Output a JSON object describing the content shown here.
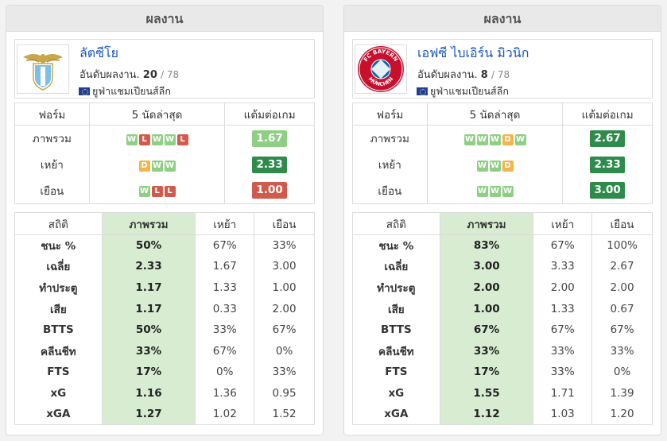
{
  "colors": {
    "win": "#8fcf84",
    "draw": "#f2b54a",
    "loss": "#d25a4c",
    "ppg_high": "#2e8b4c",
    "ppg_mid": "#8fcf84",
    "ppg_low": "#d25a4c",
    "team_link": "#1a56b8"
  },
  "teams": [
    {
      "header": "ผลงาน",
      "name": "ลัตซีโย",
      "logo_icon": "lazio-eagle-crest-icon",
      "rank_label": "อันดับผลงาน.",
      "rank": "20",
      "rank_total": "/ 78",
      "competition": "ยูฟ่าแชมเปียนส์ลีก",
      "form_headers": [
        "ฟอร์ม",
        "5 นัดล่าสุด",
        "แต้มต่อเกม"
      ],
      "form_rows": [
        {
          "label": "ภาพรวม",
          "results": [
            "W",
            "L",
            "W",
            "W",
            "L"
          ],
          "ppg": "1.67",
          "ppg_color": "#8fcf84"
        },
        {
          "label": "เหย้า",
          "results": [
            "D",
            "W",
            "W"
          ],
          "ppg": "2.33",
          "ppg_color": "#2e8b4c"
        },
        {
          "label": "เยือน",
          "results": [
            "W",
            "L",
            "L"
          ],
          "ppg": "1.00",
          "ppg_color": "#d25a4c"
        }
      ],
      "stats_headers": [
        "สถิติ",
        "ภาพรวม",
        "เหย้า",
        "เยือน"
      ],
      "stats_rows": [
        {
          "label": "ชนะ %",
          "overall": "50%",
          "home": "67%",
          "away": "33%"
        },
        {
          "label": "เฉลี่ย",
          "overall": "2.33",
          "home": "1.67",
          "away": "3.00"
        },
        {
          "label": "ทำประตู",
          "overall": "1.17",
          "home": "1.33",
          "away": "1.00"
        },
        {
          "label": "เสีย",
          "overall": "1.17",
          "home": "0.33",
          "away": "2.00"
        },
        {
          "label": "BTTS",
          "overall": "50%",
          "home": "33%",
          "away": "67%"
        },
        {
          "label": "คลีนชีท",
          "overall": "33%",
          "home": "67%",
          "away": "0%"
        },
        {
          "label": "FTS",
          "overall": "17%",
          "home": "0%",
          "away": "33%"
        },
        {
          "label": "xG",
          "overall": "1.16",
          "home": "1.36",
          "away": "0.95"
        },
        {
          "label": "xGA",
          "overall": "1.27",
          "home": "1.02",
          "away": "1.52"
        }
      ]
    },
    {
      "header": "ผลงาน",
      "name": "เอฟซี ไบเอิร์น มิวนิก",
      "logo_icon": "bayern-munich-crest-icon",
      "logo_text": "FC BAYERN MÜNCHEN",
      "rank_label": "อันดับผลงาน.",
      "rank": "8",
      "rank_total": "/ 78",
      "competition": "ยูฟ่าแชมเปียนส์ลีก",
      "form_headers": [
        "ฟอร์ม",
        "5 นัดล่าสุด",
        "แต้มต่อเกม"
      ],
      "form_rows": [
        {
          "label": "ภาพรวม",
          "results": [
            "W",
            "W",
            "W",
            "D",
            "W"
          ],
          "ppg": "2.67",
          "ppg_color": "#2e8b4c"
        },
        {
          "label": "เหย้า",
          "results": [
            "W",
            "W",
            "D"
          ],
          "ppg": "2.33",
          "ppg_color": "#2e8b4c"
        },
        {
          "label": "เยือน",
          "results": [
            "W",
            "W",
            "W"
          ],
          "ppg": "3.00",
          "ppg_color": "#2e8b4c"
        }
      ],
      "stats_headers": [
        "สถิติ",
        "ภาพรวม",
        "เหย้า",
        "เยือน"
      ],
      "stats_rows": [
        {
          "label": "ชนะ %",
          "overall": "83%",
          "home": "67%",
          "away": "100%"
        },
        {
          "label": "เฉลี่ย",
          "overall": "3.00",
          "home": "3.33",
          "away": "2.67"
        },
        {
          "label": "ทำประตู",
          "overall": "2.00",
          "home": "2.00",
          "away": "2.00"
        },
        {
          "label": "เสีย",
          "overall": "1.00",
          "home": "1.33",
          "away": "0.67"
        },
        {
          "label": "BTTS",
          "overall": "67%",
          "home": "67%",
          "away": "67%"
        },
        {
          "label": "คลีนชีท",
          "overall": "33%",
          "home": "33%",
          "away": "33%"
        },
        {
          "label": "FTS",
          "overall": "17%",
          "home": "33%",
          "away": "0%"
        },
        {
          "label": "xG",
          "overall": "1.55",
          "home": "1.71",
          "away": "1.39"
        },
        {
          "label": "xGA",
          "overall": "1.12",
          "home": "1.03",
          "away": "1.20"
        }
      ]
    }
  ]
}
